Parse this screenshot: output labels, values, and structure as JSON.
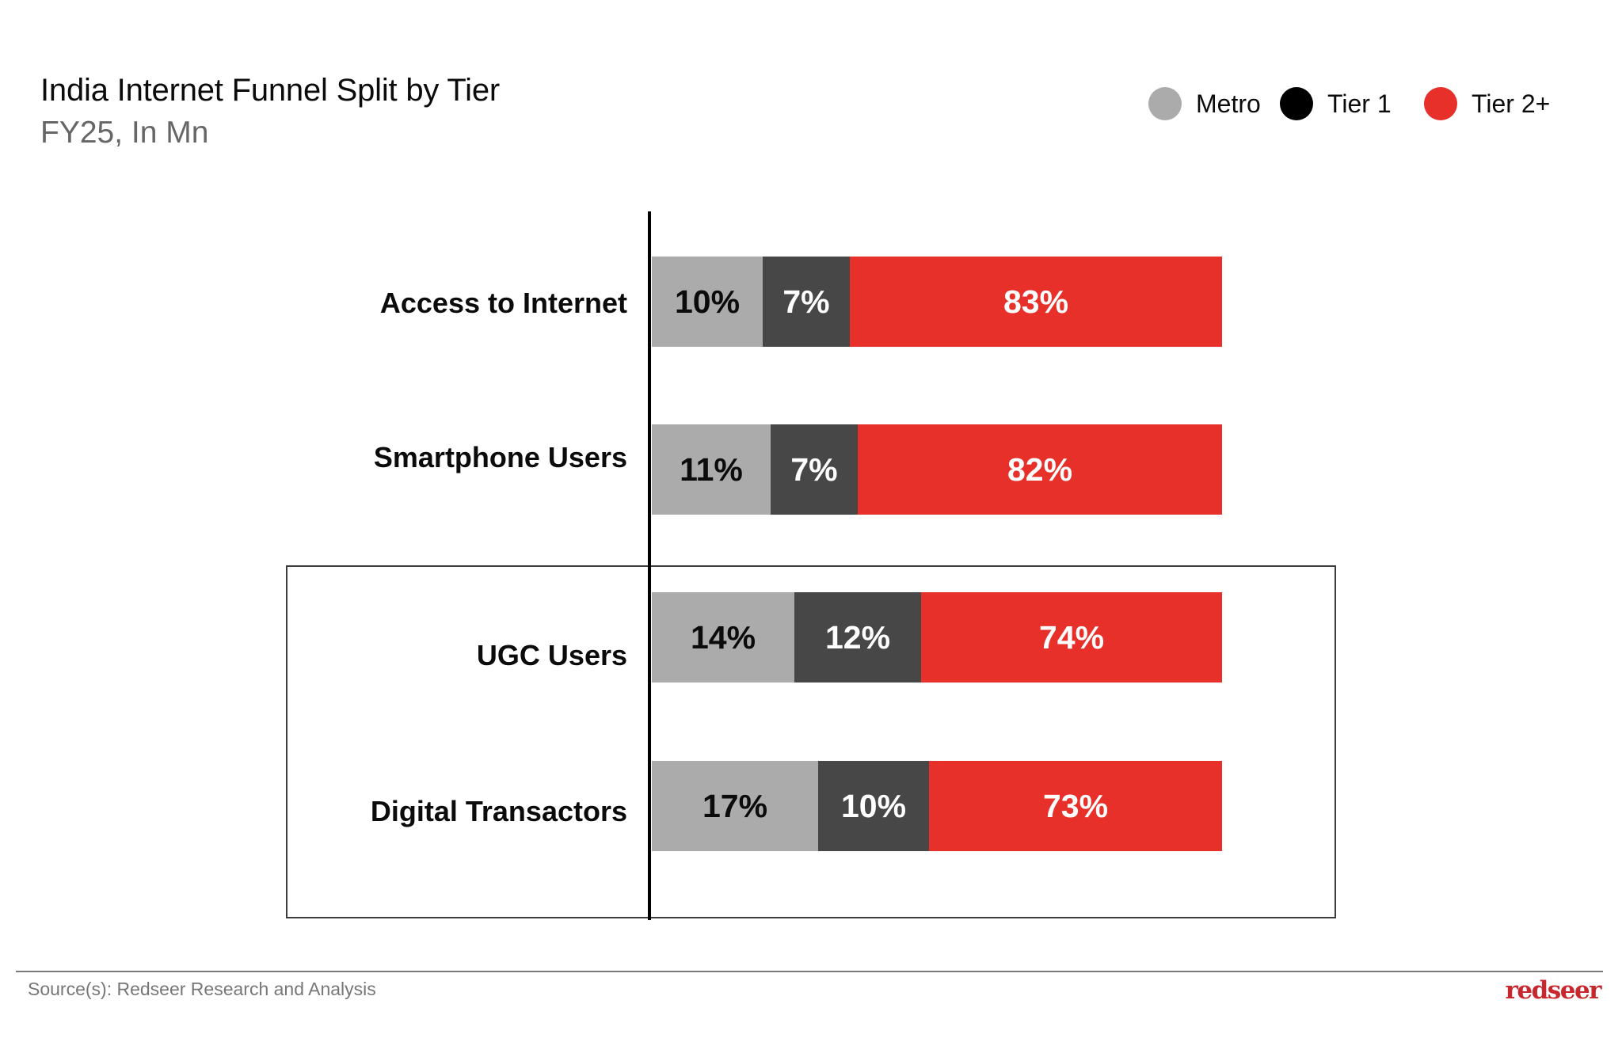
{
  "header": {
    "title": "India Internet Funnel Split by Tier",
    "subtitle": "FY25, In Mn"
  },
  "legend": [
    {
      "label": "Metro",
      "color": "#ababab"
    },
    {
      "label": "Tier 1",
      "color": "#000000"
    },
    {
      "label": "Tier 2+",
      "color": "#e8302a"
    }
  ],
  "chart_data": {
    "type": "bar",
    "orientation": "horizontal",
    "stacked": true,
    "percent": true,
    "title": "India Internet Funnel Split by Tier",
    "subtitle": "FY25, In Mn",
    "xlabel": "",
    "ylabel": "",
    "xlim": [
      0,
      100
    ],
    "grid": false,
    "legend_position": "top-right",
    "categories": [
      "Access to Internet",
      "Smartphone Users",
      "UGC Users",
      "Digital Transactors"
    ],
    "series": [
      {
        "name": "Metro",
        "color": "#ababab",
        "text_color": "#0b0b0b",
        "values": [
          10,
          11,
          14,
          17
        ],
        "labels": [
          "10%",
          "11%",
          "14%",
          "17%"
        ]
      },
      {
        "name": "Tier 1",
        "color": "#474747",
        "text_color": "#ffffff",
        "values": [
          7,
          7,
          12,
          10
        ],
        "labels": [
          "7%",
          "7%",
          "12%",
          "10%"
        ]
      },
      {
        "name": "Tier 2+",
        "color": "#e8302a",
        "text_color": "#ffffff",
        "values": [
          83,
          82,
          74,
          73
        ],
        "labels": [
          "83%",
          "82%",
          "74%",
          "73%"
        ]
      }
    ],
    "highlighted_categories": [
      "UGC Users",
      "Digital Transactors"
    ]
  },
  "footer": {
    "source": "Source(s): Redseer Research and Analysis",
    "logo_text": "redseer",
    "logo_color": "#c8272d"
  }
}
